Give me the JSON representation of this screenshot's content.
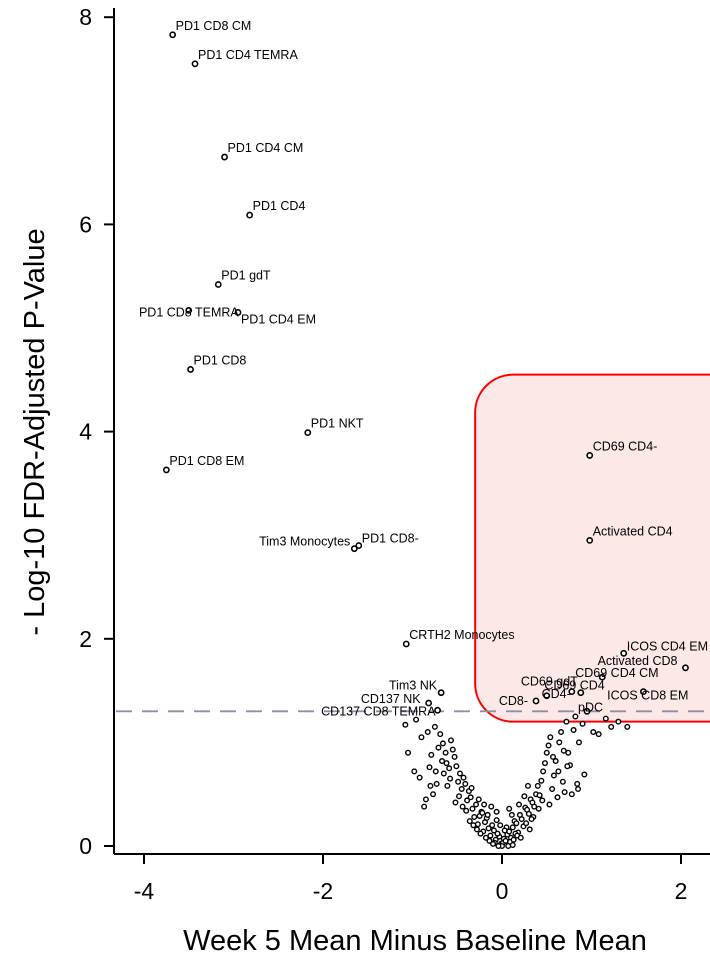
{
  "chart_data": {
    "type": "scatter",
    "title": "",
    "xlabel": "Week 5 Mean Minus Baseline Mean",
    "ylabel": "- Log-10 FDR-Adjusted P-Value",
    "xlim": [
      -4.35,
      2.35
    ],
    "ylim": [
      -0.08,
      8.12
    ],
    "x_ticks": [
      -4,
      -2,
      0,
      2
    ],
    "x_tick_labels": [
      "-4",
      "-2",
      "0",
      "2"
    ],
    "y_ticks": [
      0,
      2,
      4,
      6,
      8
    ],
    "y_tick_labels": [
      "0",
      "2",
      "4",
      "6",
      "8"
    ],
    "significance_threshold": 1.3,
    "highlight_region": {
      "x_range": [
        -0.3,
        2.35
      ],
      "y_range": [
        1.2,
        4.55
      ],
      "color": "#ff0000",
      "fill": "#fde8e8"
    },
    "grid": false,
    "labeled_points": [
      {
        "x": -3.68,
        "y": 7.83,
        "label": "PD1 CD8 CM"
      },
      {
        "x": -3.43,
        "y": 7.55,
        "label": "PD1 CD4 TEMRA"
      },
      {
        "x": -3.1,
        "y": 6.65,
        "label": "PD1 CD4 CM"
      },
      {
        "x": -2.82,
        "y": 6.09,
        "label": "PD1 CD4"
      },
      {
        "x": -3.17,
        "y": 5.42,
        "label": "PD1 gdT"
      },
      {
        "x": -3.5,
        "y": 5.17,
        "label": "PD1 CD8 TEMRA"
      },
      {
        "x": -2.95,
        "y": 5.15,
        "label": "PD1 CD4 EM"
      },
      {
        "x": -3.48,
        "y": 4.6,
        "label": "PD1 CD8"
      },
      {
        "x": -2.17,
        "y": 3.99,
        "label": "PD1 NKT"
      },
      {
        "x": -3.75,
        "y": 3.63,
        "label": "PD1 CD8 EM"
      },
      {
        "x": -1.65,
        "y": 2.87,
        "label": "Tim3 Monocytes"
      },
      {
        "x": -1.6,
        "y": 2.9,
        "label": "PD1 CD8-"
      },
      {
        "x": -1.07,
        "y": 1.95,
        "label": "CRTH2 Monocytes"
      },
      {
        "x": -0.68,
        "y": 1.48,
        "label": "Tim3 NK"
      },
      {
        "x": -0.82,
        "y": 1.38,
        "label": "CD137 NK"
      },
      {
        "x": -0.72,
        "y": 1.31,
        "label": "CD137 CD8 TEMRA"
      },
      {
        "x": 0.98,
        "y": 3.77,
        "label": "CD69 CD4-"
      },
      {
        "x": 0.98,
        "y": 2.95,
        "label": "Activated CD4"
      },
      {
        "x": 1.36,
        "y": 1.86,
        "label": "ICOS CD4 EM"
      },
      {
        "x": 2.05,
        "y": 1.72,
        "label": "Activated CD8"
      },
      {
        "x": 0.88,
        "y": 1.48,
        "label": "CD69 CD4"
      },
      {
        "x": 0.78,
        "y": 1.49,
        "label": "CD69 gdT"
      },
      {
        "x": 1.12,
        "y": 1.63,
        "label": "CD69 CD4 CM"
      },
      {
        "x": 0.38,
        "y": 1.4,
        "label": "CD8-"
      },
      {
        "x": 0.5,
        "y": 1.45,
        "label": "CD4-"
      },
      {
        "x": 0.95,
        "y": 1.3,
        "label": "pDC"
      },
      {
        "x": 1.58,
        "y": 1.49,
        "label": "ICOS CD8 EM"
      }
    ],
    "unlabeled_points": [
      [
        -0.01,
        0.02
      ],
      [
        0.01,
        0.03
      ],
      [
        0.02,
        0.07
      ],
      [
        -0.03,
        0.09
      ],
      [
        0.04,
        0.05
      ],
      [
        -0.05,
        0.12
      ],
      [
        0.06,
        0.11
      ],
      [
        -0.07,
        0.06
      ],
      [
        0.08,
        0.14
      ],
      [
        -0.09,
        0.15
      ],
      [
        0.1,
        0.08
      ],
      [
        -0.11,
        0.2
      ],
      [
        0.12,
        0.18
      ],
      [
        -0.13,
        0.1
      ],
      [
        0.14,
        0.24
      ],
      [
        -0.15,
        0.17
      ],
      [
        0.16,
        0.22
      ],
      [
        -0.17,
        0.27
      ],
      [
        0.18,
        0.13
      ],
      [
        -0.19,
        0.23
      ],
      [
        0.2,
        0.3
      ],
      [
        -0.21,
        0.14
      ],
      [
        0.22,
        0.26
      ],
      [
        -0.23,
        0.33
      ],
      [
        0.24,
        0.19
      ],
      [
        -0.25,
        0.29
      ],
      [
        0.26,
        0.37
      ],
      [
        -0.27,
        0.21
      ],
      [
        0.28,
        0.35
      ],
      [
        -0.29,
        0.4
      ],
      [
        0.3,
        0.31
      ],
      [
        -0.31,
        0.28
      ],
      [
        0.32,
        0.45
      ],
      [
        -0.33,
        0.36
      ],
      [
        0.34,
        0.42
      ],
      [
        -0.35,
        0.47
      ],
      [
        0.36,
        0.38
      ],
      [
        -0.37,
        0.53
      ],
      [
        0.38,
        0.5
      ],
      [
        -0.39,
        0.44
      ],
      [
        0.4,
        0.58
      ],
      [
        -0.41,
        0.6
      ],
      [
        0.42,
        0.49
      ],
      [
        -0.43,
        0.66
      ],
      [
        0.44,
        0.63
      ],
      [
        -0.45,
        0.55
      ],
      [
        0.46,
        0.72
      ],
      [
        -0.47,
        0.7
      ],
      [
        0.48,
        0.8
      ],
      [
        -0.49,
        0.62
      ],
      [
        0.5,
        0.9
      ],
      [
        -0.51,
        0.77
      ],
      [
        0.52,
        0.97
      ],
      [
        -0.53,
        0.86
      ],
      [
        0.54,
        1.05
      ],
      [
        -0.55,
        0.93
      ],
      [
        0.56,
        0.55
      ],
      [
        -0.57,
        1.02
      ],
      [
        0.58,
        0.68
      ],
      [
        -0.59,
        0.75
      ],
      [
        0.6,
        0.82
      ],
      [
        -0.61,
        0.58
      ],
      [
        0.62,
        0.47
      ],
      [
        -0.63,
        0.9
      ],
      [
        0.64,
        1.0
      ],
      [
        -0.65,
        0.7
      ],
      [
        0.66,
        1.1
      ],
      [
        -0.67,
        0.82
      ],
      [
        0.68,
        0.62
      ],
      [
        -0.69,
        1.08
      ],
      [
        0.7,
        0.52
      ],
      [
        -0.71,
        0.95
      ],
      [
        0.72,
        1.2
      ],
      [
        -0.73,
        0.6
      ],
      [
        0.74,
        0.9
      ],
      [
        -0.75,
        1.15
      ],
      [
        0.76,
        0.78
      ],
      [
        -0.77,
        0.5
      ],
      [
        0.78,
        0.5
      ],
      [
        -0.79,
        0.88
      ],
      [
        0.8,
        1.12
      ],
      [
        -0.81,
        0.76
      ],
      [
        0.82,
        1.25
      ],
      [
        -0.83,
        1.1
      ],
      [
        0.84,
        0.6
      ],
      [
        -0.85,
        0.45
      ],
      [
        0.86,
        1.0
      ],
      [
        -0.87,
        0.38
      ],
      [
        0.9,
        1.18
      ],
      [
        -0.9,
        1.05
      ],
      [
        1.02,
        1.1
      ],
      [
        -1.05,
        0.9
      ],
      [
        1.08,
        1.08
      ],
      [
        -1.08,
        1.17
      ],
      [
        1.22,
        1.15
      ],
      [
        1.4,
        1.15
      ],
      [
        0.05,
        0.18
      ],
      [
        -0.06,
        0.25
      ],
      [
        0.11,
        0.3
      ],
      [
        -0.12,
        0.38
      ],
      [
        0.15,
        0.12
      ],
      [
        -0.18,
        0.08
      ],
      [
        0.19,
        0.4
      ],
      [
        -0.22,
        0.32
      ],
      [
        0.27,
        0.22
      ],
      [
        -0.26,
        0.45
      ],
      [
        0.31,
        0.16
      ],
      [
        -0.32,
        0.2
      ],
      [
        0.35,
        0.28
      ],
      [
        -0.34,
        0.56
      ],
      [
        0.41,
        0.36
      ],
      [
        -0.4,
        0.34
      ],
      [
        0.03,
        0.15
      ],
      [
        -0.02,
        0.2
      ],
      [
        0.09,
        0.04
      ],
      [
        -0.08,
        0.03
      ],
      [
        0.13,
        0.06
      ],
      [
        -0.14,
        0.05
      ],
      [
        0.17,
        0.1
      ],
      [
        -0.16,
        0.3
      ],
      [
        0.21,
        0.08
      ],
      [
        -0.2,
        0.4
      ],
      [
        0.25,
        0.48
      ],
      [
        -0.24,
        0.12
      ],
      [
        0.29,
        0.58
      ],
      [
        -0.28,
        0.16
      ],
      [
        0.33,
        0.26
      ],
      [
        -0.36,
        0.24
      ],
      [
        0.0,
        0.0
      ],
      [
        -0.04,
        0.0
      ],
      [
        0.07,
        0.0
      ],
      [
        -0.1,
        0.02
      ],
      [
        0.12,
        0.01
      ],
      [
        -0.06,
        0.33
      ],
      [
        0.08,
        0.36
      ],
      [
        -0.44,
        0.38
      ],
      [
        0.45,
        0.44
      ],
      [
        -0.48,
        0.48
      ],
      [
        0.53,
        0.4
      ],
      [
        -0.52,
        0.42
      ],
      [
        0.57,
        0.86
      ],
      [
        -0.58,
        0.65
      ],
      [
        0.63,
        0.72
      ],
      [
        -0.62,
        0.8
      ],
      [
        0.69,
        0.92
      ],
      [
        -0.66,
        0.99
      ],
      [
        0.73,
        0.77
      ],
      [
        -0.74,
        0.72
      ],
      [
        0.85,
        0.55
      ],
      [
        -0.8,
        0.58
      ],
      [
        0.92,
        0.69
      ],
      [
        -0.92,
        0.66
      ],
      [
        1.16,
        1.23
      ],
      [
        1.3,
        1.2
      ],
      [
        -0.96,
        1.22
      ],
      [
        -0.98,
        0.72
      ]
    ]
  }
}
